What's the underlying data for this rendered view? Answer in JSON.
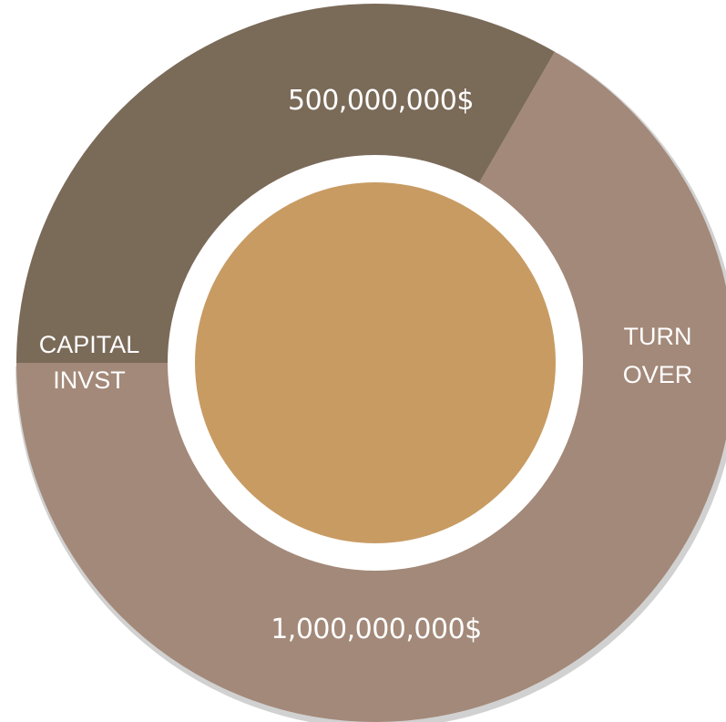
{
  "chart_data": {
    "type": "pie",
    "style": "donut",
    "categories": [
      "CAPITAL INVST",
      "TURN OVER"
    ],
    "values": [
      500000000,
      1000000000
    ],
    "value_labels": [
      "500,000,000$",
      "1,000,000,000$"
    ],
    "category_lines": [
      [
        "CAPITAL",
        "INVST"
      ],
      [
        "TURN",
        "OVER"
      ]
    ],
    "colors": {
      "capital": "#7a6a58",
      "turnover": "#a38979",
      "center": "#c89b63",
      "gap": "#ffffff"
    }
  }
}
